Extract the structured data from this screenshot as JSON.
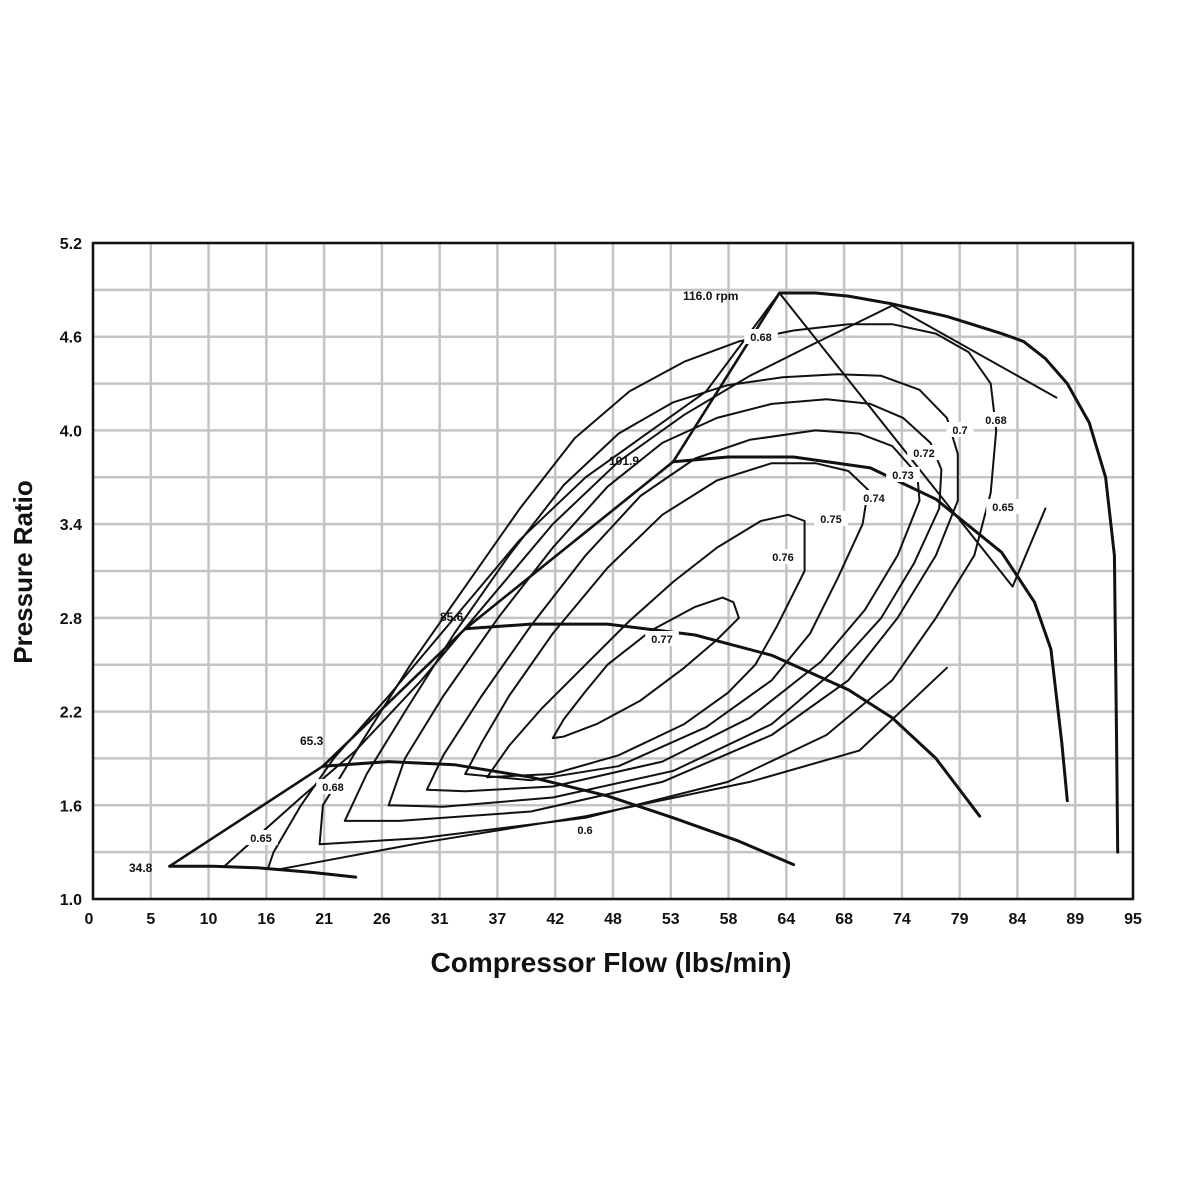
{
  "chart_data": {
    "type": "line",
    "title": "",
    "xlabel": "Compressor Flow (lbs/min)",
    "ylabel": "Pressure Ratio",
    "xlim": [
      0,
      95
    ],
    "ylim": [
      1.0,
      5.2
    ],
    "x_ticks": [
      "0",
      "5",
      "10",
      "16",
      "21",
      "26",
      "31",
      "37",
      "42",
      "48",
      "53",
      "58",
      "64",
      "68",
      "74",
      "79",
      "84",
      "89",
      "95"
    ],
    "y_ticks": [
      "1.0",
      "1.6",
      "2.2",
      "2.8",
      "3.4",
      "4.0",
      "4.6",
      "5.2"
    ],
    "grid": true,
    "surge_line": [
      [
        7,
        1.21
      ],
      [
        21,
        1.85
      ],
      [
        34,
        2.73
      ],
      [
        53,
        3.8
      ],
      [
        62.7,
        4.88
      ]
    ],
    "speed_lines": [
      {
        "label": "34.8",
        "points": [
          [
            7,
            1.21
          ],
          [
            11,
            1.21
          ],
          [
            15,
            1.2
          ],
          [
            20,
            1.17
          ],
          [
            24,
            1.14
          ]
        ]
      },
      {
        "label": "65.3",
        "points": [
          [
            21,
            1.85
          ],
          [
            27,
            1.88
          ],
          [
            33,
            1.86
          ],
          [
            40,
            1.78
          ],
          [
            47,
            1.66
          ],
          [
            53,
            1.52
          ],
          [
            59,
            1.37
          ],
          [
            64,
            1.22
          ]
        ]
      },
      {
        "label": "85.6",
        "points": [
          [
            34,
            2.73
          ],
          [
            40,
            2.76
          ],
          [
            47,
            2.76
          ],
          [
            55,
            2.69
          ],
          [
            62,
            2.56
          ],
          [
            69,
            2.34
          ],
          [
            73,
            2.16
          ],
          [
            77,
            1.9
          ],
          [
            81,
            1.53
          ]
        ]
      },
      {
        "label": "101.9",
        "points": [
          [
            53,
            3.8
          ],
          [
            58,
            3.83
          ],
          [
            64,
            3.83
          ],
          [
            71,
            3.76
          ],
          [
            77,
            3.56
          ],
          [
            83,
            3.22
          ],
          [
            86,
            2.9
          ],
          [
            87.5,
            2.6
          ],
          [
            88.5,
            2.0
          ],
          [
            89,
            1.63
          ]
        ]
      },
      {
        "label": "116.0 rpm",
        "points": [
          [
            62.7,
            4.88
          ],
          [
            66,
            4.88
          ],
          [
            69,
            4.86
          ],
          [
            73,
            4.81
          ],
          [
            78,
            4.73
          ],
          [
            83,
            4.62
          ],
          [
            85,
            4.57
          ],
          [
            87,
            4.46
          ],
          [
            89,
            4.3
          ],
          [
            91,
            4.05
          ],
          [
            92.5,
            3.7
          ],
          [
            93.3,
            3.2
          ],
          [
            93.5,
            2.0
          ],
          [
            93.6,
            1.3
          ]
        ]
      }
    ],
    "efficiency_islands": [
      {
        "label": "0.77",
        "points": [
          [
            42,
            2.03
          ],
          [
            43,
            2.15
          ],
          [
            45,
            2.33
          ],
          [
            47,
            2.5
          ],
          [
            51,
            2.72
          ],
          [
            55,
            2.87
          ],
          [
            57.5,
            2.93
          ],
          [
            58.5,
            2.9
          ],
          [
            59,
            2.8
          ],
          [
            57,
            2.66
          ],
          [
            54,
            2.48
          ],
          [
            50,
            2.27
          ],
          [
            46,
            2.12
          ],
          [
            43,
            2.04
          ],
          [
            42,
            2.03
          ]
        ]
      },
      {
        "label": "0.76",
        "points": [
          [
            36,
            1.78
          ],
          [
            38,
            1.98
          ],
          [
            41,
            2.22
          ],
          [
            45,
            2.5
          ],
          [
            49,
            2.78
          ],
          [
            53,
            3.03
          ],
          [
            57,
            3.25
          ],
          [
            61,
            3.42
          ],
          [
            63.5,
            3.46
          ],
          [
            65,
            3.42
          ],
          [
            65,
            3.1
          ],
          [
            62.5,
            2.75
          ],
          [
            60.5,
            2.5
          ],
          [
            58,
            2.32
          ],
          [
            54,
            2.12
          ],
          [
            48,
            1.92
          ],
          [
            42,
            1.8
          ],
          [
            36,
            1.78
          ]
        ]
      },
      {
        "label": "0.75",
        "points": [
          [
            34,
            1.8
          ],
          [
            35.5,
            2.0
          ],
          [
            38,
            2.3
          ],
          [
            42,
            2.7
          ],
          [
            47,
            3.12
          ],
          [
            52,
            3.46
          ],
          [
            57,
            3.68
          ],
          [
            62,
            3.79
          ],
          [
            66,
            3.79
          ],
          [
            69,
            3.74
          ],
          [
            70.8,
            3.62
          ],
          [
            70.3,
            3.4
          ],
          [
            68,
            3.05
          ],
          [
            65.5,
            2.7
          ],
          [
            62,
            2.4
          ],
          [
            56,
            2.1
          ],
          [
            48,
            1.85
          ],
          [
            40,
            1.76
          ],
          [
            34,
            1.8
          ]
        ]
      },
      {
        "label": "0.74",
        "points": [
          [
            30.5,
            1.7
          ],
          [
            32,
            1.92
          ],
          [
            35.5,
            2.3
          ],
          [
            40,
            2.75
          ],
          [
            45,
            3.2
          ],
          [
            50,
            3.58
          ],
          [
            55,
            3.82
          ],
          [
            60,
            3.94
          ],
          [
            66,
            4.0
          ],
          [
            70,
            3.98
          ],
          [
            73,
            3.9
          ],
          [
            75.3,
            3.72
          ],
          [
            75.5,
            3.55
          ],
          [
            73.5,
            3.2
          ],
          [
            70.5,
            2.85
          ],
          [
            66.5,
            2.52
          ],
          [
            60,
            2.16
          ],
          [
            52,
            1.88
          ],
          [
            42,
            1.72
          ],
          [
            34,
            1.69
          ],
          [
            30.5,
            1.7
          ]
        ]
      },
      {
        "label": "0.73",
        "points": [
          [
            27,
            1.6
          ],
          [
            28.5,
            1.9
          ],
          [
            32,
            2.3
          ],
          [
            37,
            2.8
          ],
          [
            42,
            3.25
          ],
          [
            47,
            3.64
          ],
          [
            52,
            3.92
          ],
          [
            57,
            4.08
          ],
          [
            62,
            4.17
          ],
          [
            67,
            4.2
          ],
          [
            71,
            4.17
          ],
          [
            74,
            4.08
          ],
          [
            76.5,
            3.92
          ],
          [
            77.5,
            3.75
          ],
          [
            77.3,
            3.5
          ],
          [
            75,
            3.15
          ],
          [
            72,
            2.8
          ],
          [
            67.5,
            2.45
          ],
          [
            62,
            2.12
          ],
          [
            53,
            1.82
          ],
          [
            42,
            1.65
          ],
          [
            32,
            1.59
          ],
          [
            27,
            1.6
          ]
        ]
      },
      {
        "label": "0.72",
        "points": [
          [
            23,
            1.5
          ],
          [
            25,
            1.8
          ],
          [
            28.5,
            2.2
          ],
          [
            33,
            2.7
          ],
          [
            38,
            3.2
          ],
          [
            43,
            3.65
          ],
          [
            48,
            3.98
          ],
          [
            53,
            4.18
          ],
          [
            58,
            4.29
          ],
          [
            63,
            4.34
          ],
          [
            68,
            4.36
          ],
          [
            72,
            4.35
          ],
          [
            75.5,
            4.26
          ],
          [
            78,
            4.08
          ],
          [
            79,
            3.85
          ],
          [
            79,
            3.55
          ],
          [
            77,
            3.2
          ],
          [
            73.5,
            2.8
          ],
          [
            69,
            2.4
          ],
          [
            62,
            2.05
          ],
          [
            52,
            1.75
          ],
          [
            40,
            1.56
          ],
          [
            28,
            1.5
          ],
          [
            23,
            1.5
          ]
        ]
      },
      {
        "label": "0.7",
        "points": [
          [
            20.7,
            1.35
          ],
          [
            21,
            1.6
          ],
          [
            24.5,
            2.0
          ],
          [
            29,
            2.5
          ],
          [
            34,
            3.0
          ],
          [
            39,
            3.5
          ],
          [
            44,
            3.95
          ],
          [
            49,
            4.25
          ],
          [
            54,
            4.44
          ],
          [
            59,
            4.57
          ],
          [
            64,
            4.64
          ],
          [
            69,
            4.68
          ],
          [
            73,
            4.68
          ],
          [
            77,
            4.62
          ],
          [
            80,
            4.5
          ],
          [
            82,
            4.3
          ],
          [
            82.5,
            4.0
          ],
          [
            82,
            3.6
          ],
          [
            80.5,
            3.2
          ],
          [
            77,
            2.8
          ],
          [
            73,
            2.4
          ],
          [
            67,
            2.05
          ],
          [
            58,
            1.75
          ],
          [
            45,
            1.52
          ],
          [
            30,
            1.39
          ],
          [
            20.7,
            1.35
          ]
        ]
      },
      {
        "label": "0.68",
        "points": [
          [
            12,
            1.21
          ],
          [
            15,
            1.4
          ],
          [
            19,
            1.65
          ],
          [
            24,
            1.95
          ],
          [
            30,
            2.4
          ],
          [
            36,
            2.9
          ],
          [
            42,
            3.4
          ],
          [
            48,
            3.8
          ],
          [
            54,
            4.1
          ],
          [
            60,
            4.35
          ],
          [
            66,
            4.56
          ],
          [
            71,
            4.73
          ],
          [
            73,
            4.8
          ],
          [
            88,
            4.21
          ]
        ]
      },
      {
        "label": "0.65",
        "points": [
          [
            16,
            1.2
          ],
          [
            16.5,
            1.3
          ],
          [
            19,
            1.6
          ],
          [
            22,
            1.9
          ],
          [
            27,
            2.3
          ],
          [
            33,
            2.8
          ],
          [
            39,
            3.3
          ],
          [
            45,
            3.7
          ],
          [
            50,
            3.95
          ],
          [
            56,
            4.25
          ],
          [
            62.7,
            4.88
          ],
          [
            84,
            3.0
          ],
          [
            87,
            3.5
          ]
        ]
      },
      {
        "label": "0.6",
        "points": [
          [
            17,
            1.19
          ],
          [
            30,
            1.36
          ],
          [
            45,
            1.53
          ],
          [
            60,
            1.75
          ],
          [
            70,
            1.95
          ],
          [
            78,
            2.48
          ]
        ]
      }
    ],
    "speed_line_labels": [
      "116.0 rpm",
      "101.9",
      "85.6",
      "65.3",
      "34.8"
    ],
    "efficiency_labels": [
      "0.68",
      "0.7",
      "0.68",
      "0.72",
      "0.73",
      "0.74",
      "0.75",
      "0.65",
      "0.76",
      "0.77",
      "0.68",
      "0.65",
      "0.6"
    ]
  }
}
